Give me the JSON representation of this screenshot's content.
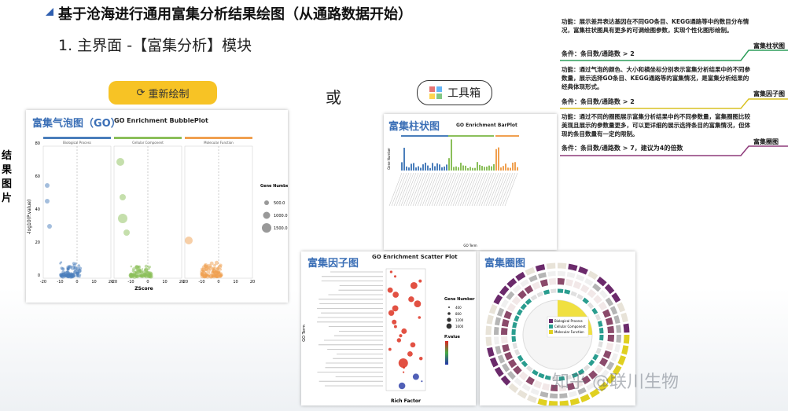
{
  "header": {
    "title": "基于沧海进行通用富集分析结果绘图（从通路数据开始）",
    "subtitle": "1. 主界面 -【富集分析】模块"
  },
  "buttons": {
    "redraw": "重新绘制",
    "or": "或",
    "toolbox": "工具箱"
  },
  "side_label": "结果图片",
  "bubble": {
    "title_cn": "富集气泡图（GO）",
    "title_en": "GO Enrichment BubblePlot",
    "facets": [
      "Biological Process",
      "Cellular Component",
      "Molecular Function"
    ],
    "y_label": "-log10(P.value)",
    "x_label": "ZScore",
    "yticks": [
      "0",
      "20",
      "40",
      "60",
      "80"
    ],
    "xticks": [
      "-20",
      "-10",
      "0",
      "10",
      "20"
    ],
    "legend_title": "Gene Number",
    "legend": [
      "500.0",
      "1000.0",
      "1500.0"
    ]
  },
  "bar": {
    "title_cn": "富集柱状图",
    "title_en": "GO Enrichment BarPlot",
    "y_label": "Gene Number",
    "x_label": "GO Term"
  },
  "scatter": {
    "title_cn": "富集因子图",
    "title_en": "GO Enrichment Scatter Plot",
    "y_label": "GO Term",
    "x_label": "Rich Factor",
    "size_title": "Gene Number",
    "sizes": [
      "400",
      "800",
      "1200",
      "1600"
    ],
    "color_title": "P.value"
  },
  "circle": {
    "title_cn": "富集圈图",
    "legend": [
      "Biological Process",
      "Cellular Component",
      "Molecular Function"
    ]
  },
  "notes": [
    {
      "function": "功能：展示差异表达基因在不同GO条目、KEGG通路等中的数目分布情况，富集柱状图具有更多的可调绘图参数，实现个性化图形绘制。",
      "condition": "条件：条目数/通路数 > 2",
      "label": "富集柱状图"
    },
    {
      "function": "功能：通过气泡的颜色、大小和横坐标分别表示富集分析结果中的不同参数量，展示选择GO条目、KEGG通路等的富集情况，是富集分析结果的经典体现形式。",
      "condition": "条件：条目数/通路数 > 2",
      "label": "富集因子图"
    },
    {
      "function": "功能：通过不同的圈图展示富集分析结果中的不同参数量，富集圈图比较美观且展示的参数量更多，可以更详细的展示选择条目的富集情况，但体现的条目数量有一定的限制。",
      "condition": "条件：条目数/通路数 > 7，建议为4的倍数",
      "label": "富集圈图"
    }
  ],
  "watermark": "知乎 @联川生物"
}
